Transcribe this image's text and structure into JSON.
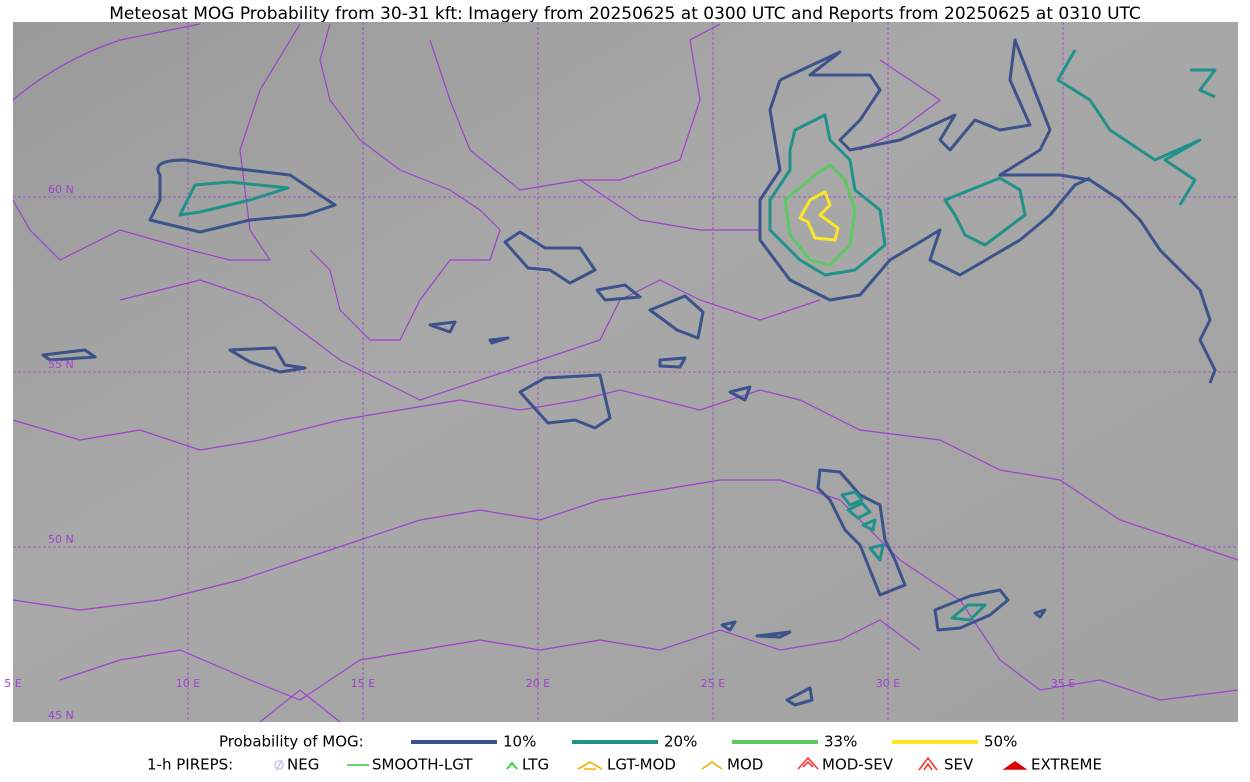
{
  "title": "Meteosat MOG Probability from 30-31 kft: Imagery from 20250625 at 0300 UTC and Reports from 20250625 at 0310 UTC",
  "map": {
    "lat_labels": [
      "60 N",
      "55 N",
      "50 N",
      "45 N"
    ],
    "lon_labels": [
      "5 E",
      "10 E",
      "15 E",
      "20 E",
      "25 E",
      "30 E",
      "35 E"
    ]
  },
  "legend": {
    "mog": {
      "title": "Probability of MOG:",
      "items": [
        {
          "label": "10%",
          "color": "#3b528b"
        },
        {
          "label": "20%",
          "color": "#21918c"
        },
        {
          "label": "33%",
          "color": "#5ec962"
        },
        {
          "label": "50%",
          "color": "#fde725"
        }
      ]
    },
    "pireps": {
      "title": "1-h PIREPS:",
      "items": [
        {
          "label": "NEG",
          "color": "#c8c8f0"
        },
        {
          "label": "SMOOTH-LGT",
          "color": "#33cc33"
        },
        {
          "label": "LTG",
          "color": "#00dd00"
        },
        {
          "label": "LGT-MOD",
          "color": "#ffaa00"
        },
        {
          "label": "MOD",
          "color": "#ffaa00"
        },
        {
          "label": "MOD-SEV",
          "color": "#ff3333"
        },
        {
          "label": "SEV",
          "color": "#ff3333"
        },
        {
          "label": "EXTREME",
          "color": "#dd0000"
        }
      ]
    }
  }
}
